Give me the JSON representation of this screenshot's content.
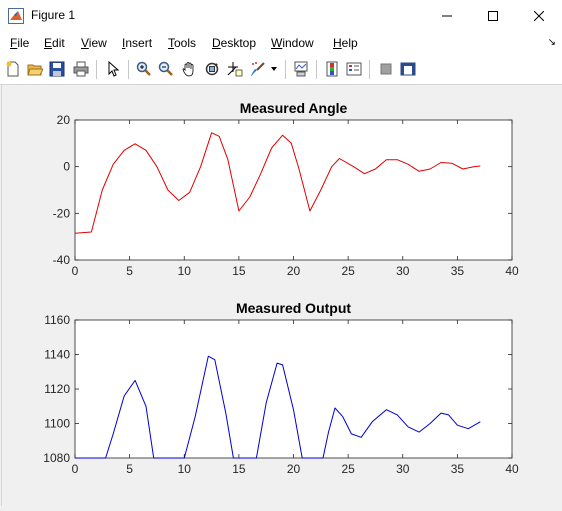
{
  "window": {
    "title": "Figure 1",
    "app_icon": "matlab-icon",
    "controls": [
      "minimize-icon",
      "maximize-icon",
      "close-icon"
    ]
  },
  "menu": {
    "items": [
      {
        "label": "File",
        "mnemonic": "F"
      },
      {
        "label": "Edit",
        "mnemonic": "E"
      },
      {
        "label": "View",
        "mnemonic": "V"
      },
      {
        "label": "Insert",
        "mnemonic": "I"
      },
      {
        "label": "Tools",
        "mnemonic": "T"
      },
      {
        "label": "Desktop",
        "mnemonic": "D"
      },
      {
        "label": "Window",
        "mnemonic": "W"
      },
      {
        "label": "Help",
        "mnemonic": "H"
      }
    ],
    "corner_glyph": "↘"
  },
  "toolbar": {
    "buttons": [
      "new-figure-icon",
      "open-file-icon",
      "save-icon",
      "print-icon",
      "edit-plot-arrow-icon",
      "zoom-in-icon",
      "zoom-out-icon",
      "pan-hand-icon",
      "rotate-3d-icon",
      "data-cursor-icon",
      "brush-icon",
      "brush-dropdown-icon",
      "link-plot-icon",
      "insert-colorbar-icon",
      "insert-legend-icon",
      "hide-plot-tools-icon",
      "show-plot-tools-icon"
    ]
  },
  "chart_data": [
    {
      "type": "line",
      "title": "Measured Angle",
      "xlabel": "",
      "ylabel": "",
      "xlim": [
        0,
        40
      ],
      "ylim": [
        -40,
        20
      ],
      "xticks": [
        0,
        5,
        10,
        15,
        20,
        25,
        30,
        35,
        40
      ],
      "yticks": [
        -40,
        -20,
        0,
        20
      ],
      "grid": false,
      "color": "#e00000",
      "series": [
        {
          "x": [
            0,
            1.5,
            2.5,
            3.5,
            4.5,
            5.5,
            6.5,
            7.5,
            8.5,
            9.5,
            10.5,
            11.5,
            12.5,
            13.2,
            14.0,
            15.0,
            16.0,
            17.0,
            18.0,
            19.0,
            19.8,
            20.5,
            21.5,
            22.5,
            23.5,
            24.2,
            25.5,
            26.5,
            27.5,
            28.5,
            29.5,
            30.5,
            31.5,
            32.5,
            33.5,
            34.5,
            35.5,
            36.5,
            37.1
          ],
          "y": [
            -28.5,
            -28,
            -10,
            1,
            7,
            9.8,
            7,
            0,
            -10,
            -14.5,
            -11,
            0,
            14.5,
            13,
            3,
            -19,
            -13,
            -3,
            8,
            13.5,
            10,
            -1,
            -19,
            -10,
            0,
            3.5,
            0,
            -3,
            -1,
            3,
            3,
            1,
            -2,
            -1,
            1.8,
            1.5,
            -1,
            0,
            0.3
          ]
        }
      ]
    },
    {
      "type": "line",
      "title": "Measured Output",
      "xlabel": "",
      "ylabel": "",
      "xlim": [
        0,
        40
      ],
      "ylim": [
        1080,
        1160
      ],
      "xticks": [
        0,
        5,
        10,
        15,
        20,
        25,
        30,
        35,
        40
      ],
      "yticks": [
        1080,
        1100,
        1120,
        1140,
        1160
      ],
      "grid": false,
      "color": "#0000d0",
      "series": [
        {
          "x": [
            0,
            2.8,
            3.5,
            4.5,
            5.5,
            6.5,
            7.2,
            10.0,
            11.0,
            12.2,
            12.8,
            13.8,
            14.5,
            16.6,
            17.5,
            18.5,
            19.0,
            20.0,
            20.8,
            22.7,
            23.2,
            23.8,
            24.5,
            25.3,
            26.2,
            27.2,
            28.5,
            29.5,
            30.5,
            31.5,
            32.5,
            33.5,
            34.2,
            35.0,
            36.0,
            37.1
          ],
          "y": [
            1080,
            1080,
            1094,
            1116,
            1125,
            1110,
            1080,
            1080,
            1104,
            1139,
            1137,
            1106,
            1080,
            1080,
            1112,
            1135,
            1134,
            1108,
            1080,
            1080,
            1095,
            1109,
            1104,
            1094,
            1092,
            1101,
            1108,
            1105,
            1098,
            1095,
            1100,
            1106,
            1105,
            1099,
            1097,
            1101
          ]
        }
      ]
    }
  ]
}
